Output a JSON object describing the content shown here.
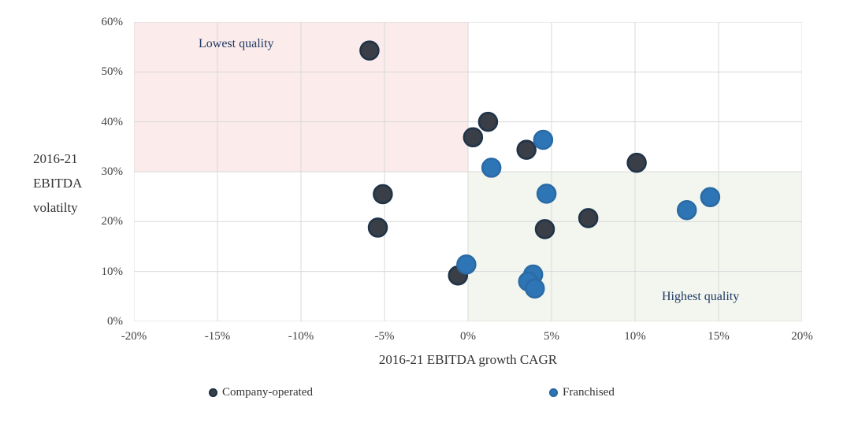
{
  "chart_data": {
    "type": "scatter",
    "title": "",
    "xlabel": "2016-21 EBITDA growth CAGR",
    "ylabel_lines": [
      "2016-21",
      "EBITDA",
      "volatilty"
    ],
    "xlim": [
      -20,
      20
    ],
    "ylim": [
      0,
      60
    ],
    "grid": true,
    "legend_position": "bottom",
    "x_tick_vals": [
      -20,
      -15,
      -10,
      -5,
      0,
      5,
      10,
      15,
      20
    ],
    "x_tick_labels": [
      "-20%",
      "-15%",
      "-10%",
      "-5%",
      "0%",
      "5%",
      "10%",
      "15%",
      "20%"
    ],
    "y_tick_vals": [
      0,
      10,
      20,
      30,
      40,
      50,
      60
    ],
    "y_tick_labels": [
      "0%",
      "10%",
      "20%",
      "30%",
      "40%",
      "50%",
      "60%"
    ],
    "colors": {
      "grid": "#d9d9d9",
      "axis_text": "#404040",
      "region_label": "#1f3864"
    },
    "regions": [
      {
        "name": "lowest-quality",
        "label": "Lowest quality",
        "x0": -20,
        "x1": 0,
        "y0": 30,
        "y1": 60,
        "fill": "#fbebea"
      },
      {
        "name": "highest-quality",
        "label": "Highest quality",
        "x0": 0,
        "x1": 20,
        "y0": 0,
        "y1": 30,
        "fill": "#f2f6ee"
      }
    ],
    "series": [
      {
        "name": "Company-operated",
        "fill": "#3a3e46",
        "stroke": "#1f3349",
        "points": [
          [
            -5.9,
            54.3
          ],
          [
            1.2,
            40.0
          ],
          [
            0.3,
            36.9
          ],
          [
            3.5,
            34.4
          ],
          [
            -5.1,
            25.5
          ],
          [
            -5.4,
            18.8
          ],
          [
            10.1,
            31.8
          ],
          [
            7.2,
            20.7
          ],
          [
            4.6,
            18.5
          ],
          [
            -0.6,
            9.2
          ]
        ]
      },
      {
        "name": "Franchised",
        "fill": "#2e75b6",
        "stroke": "#2a6aa5",
        "points": [
          [
            4.5,
            36.4
          ],
          [
            1.4,
            30.8
          ],
          [
            4.7,
            25.6
          ],
          [
            13.1,
            22.3
          ],
          [
            14.5,
            24.9
          ],
          [
            -0.1,
            11.4
          ],
          [
            3.9,
            9.4
          ],
          [
            3.6,
            8.0
          ],
          [
            4.0,
            6.6
          ]
        ]
      }
    ]
  }
}
